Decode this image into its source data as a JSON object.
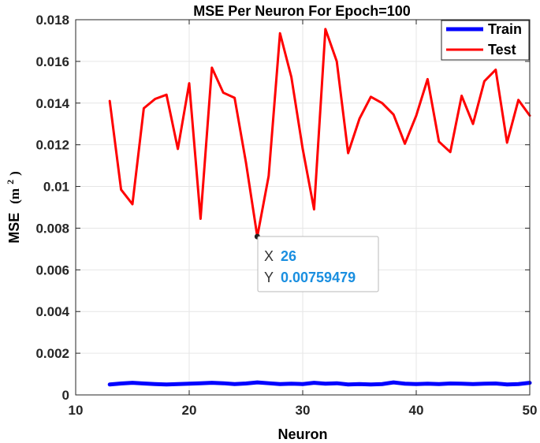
{
  "chart_data": {
    "type": "line",
    "title": "MSE Per Neuron For Epoch=100",
    "xlabel": "Neuron",
    "ylabel_main": "MSE",
    "ylabel_unit_base": "(m",
    "ylabel_unit_exp": "2",
    "ylabel_unit_close": ")",
    "xlim": [
      10,
      50
    ],
    "ylim": [
      0,
      0.018
    ],
    "x_ticks": [
      10,
      20,
      30,
      40,
      50
    ],
    "x_tick_labels": [
      "10",
      "20",
      "30",
      "40",
      "50"
    ],
    "y_ticks": [
      0,
      0.002,
      0.004,
      0.006,
      0.008,
      0.01,
      0.012,
      0.014,
      0.016,
      0.018
    ],
    "y_tick_labels": [
      "0",
      "0.002",
      "0.004",
      "0.006",
      "0.008",
      "0.01",
      "0.012",
      "0.014",
      "0.016",
      "0.018"
    ],
    "grid": true,
    "legend_position": "top-right",
    "x": [
      13,
      14,
      15,
      16,
      17,
      18,
      19,
      20,
      21,
      22,
      23,
      24,
      25,
      26,
      27,
      28,
      29,
      30,
      31,
      32,
      33,
      34,
      35,
      36,
      37,
      38,
      39,
      40,
      41,
      42,
      43,
      44,
      45,
      46,
      47,
      48,
      49,
      50
    ],
    "series": [
      {
        "name": "Train",
        "color": "#0000ff",
        "values": [
          0.0005,
          0.00055,
          0.00058,
          0.00055,
          0.00052,
          0.0005,
          0.00052,
          0.00054,
          0.00056,
          0.00058,
          0.00056,
          0.00052,
          0.00055,
          0.0006,
          0.00056,
          0.00052,
          0.00054,
          0.00052,
          0.00058,
          0.00054,
          0.00056,
          0.0005,
          0.00052,
          0.0005,
          0.00052,
          0.0006,
          0.00054,
          0.00052,
          0.00054,
          0.00052,
          0.00055,
          0.00054,
          0.00052,
          0.00054,
          0.00055,
          0.0005,
          0.00052,
          0.00058
        ]
      },
      {
        "name": "Test",
        "color": "#ff0000",
        "values": [
          0.0141,
          0.00985,
          0.00915,
          0.01375,
          0.0142,
          0.0144,
          0.0118,
          0.01495,
          0.00845,
          0.0157,
          0.0145,
          0.01425,
          0.01115,
          0.00759479,
          0.0105,
          0.01735,
          0.01525,
          0.0118,
          0.0089,
          0.01755,
          0.016,
          0.0116,
          0.01325,
          0.0143,
          0.014,
          0.01345,
          0.01205,
          0.0134,
          0.01515,
          0.01215,
          0.01165,
          0.01435,
          0.013,
          0.01505,
          0.0156,
          0.0121,
          0.01415,
          0.0134
        ]
      }
    ],
    "datatip": {
      "x_key": "X",
      "x_value": "26",
      "y_key": "Y",
      "y_value": "0.00759479",
      "x": 26,
      "y": 0.00759479
    }
  }
}
